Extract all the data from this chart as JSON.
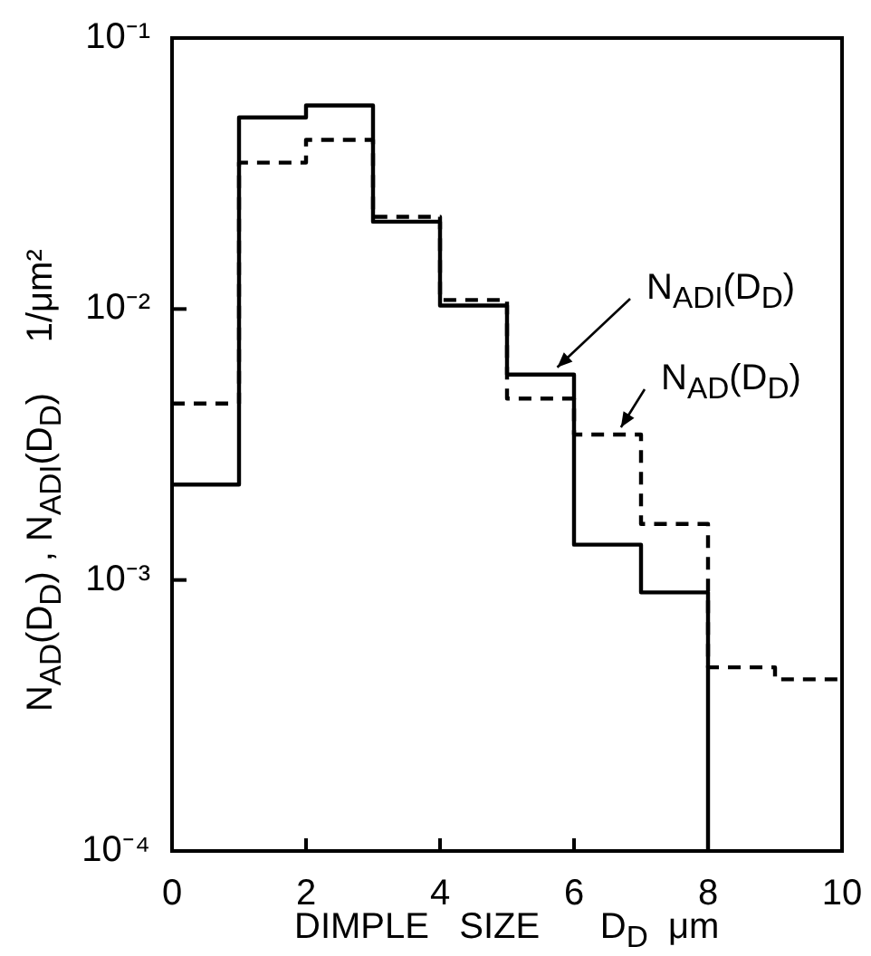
{
  "chart_data": {
    "type": "step",
    "xlabel": "DIMPLE   SIZE      D$_{D}$  μm",
    "ylabel": "N$_{AD}$(D$_{D}$) , N$_{ADI}$(D$_{D}$)     1/μm²",
    "series": [
      {
        "name": "N$_{ADI}$(D$_{D}$)",
        "color": "#000000",
        "line_style": "solid",
        "x": [
          0,
          1,
          2,
          3,
          4,
          5,
          6,
          7,
          8
        ],
        "values": [
          0.00225,
          0.0509,
          0.0564,
          0.021,
          0.0103,
          0.00573,
          0.00135,
          0.0009,
          0.0001
        ]
      },
      {
        "name": "N$_{AD}$(D$_{D}$)",
        "color": "#000000",
        "line_style": "dashed",
        "x": [
          0,
          1,
          2,
          3,
          4,
          5,
          6,
          7,
          8,
          9,
          10
        ],
        "values": [
          0.00448,
          0.0347,
          0.0421,
          0.0219,
          0.0108,
          0.00467,
          0.00344,
          0.00161,
          0.000476,
          0.00043,
          0.00043
        ]
      }
    ],
    "log": "y",
    "xlim": [
      0,
      10
    ],
    "xticks": [
      0,
      2,
      4,
      6,
      8,
      10
    ],
    "ylim": [
      0.0001,
      0.1
    ],
    "yticks": [
      {
        "value": 0.0001,
        "label": "10⁻⁴"
      },
      {
        "value": 0.001,
        "label": "10⁻³"
      },
      {
        "value": 0.01,
        "label": "10⁻²"
      },
      {
        "value": 0.1,
        "label": "10⁻¹"
      }
    ],
    "grid": false
  }
}
